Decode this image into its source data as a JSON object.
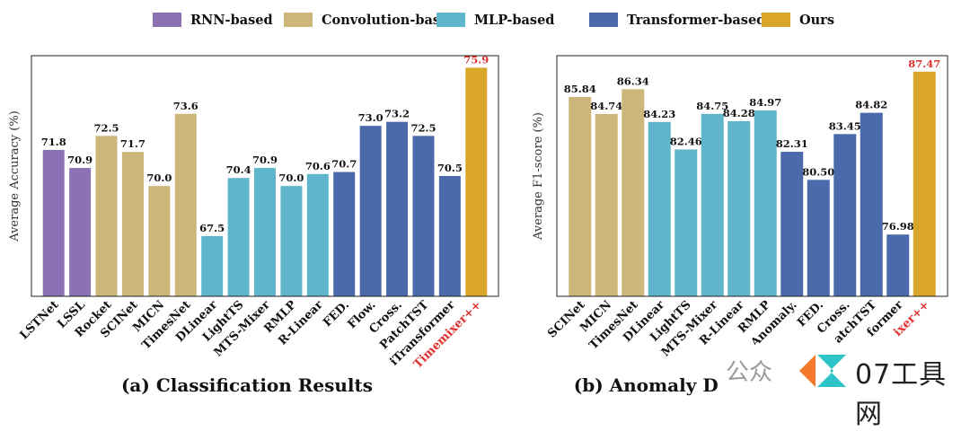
{
  "legend": [
    {
      "label": "RNN-based",
      "color": "#8a72b4"
    },
    {
      "label": "Convolution-based",
      "color": "#cdb67a"
    },
    {
      "label": "MLP-based",
      "color": "#5fb5cc"
    },
    {
      "label": "Transformer-based",
      "color": "#4a6aab"
    },
    {
      "label": "Ours",
      "color": "#d9a62a"
    }
  ],
  "highlight_color": "#e03131",
  "watermark": {
    "text": "07工具网",
    "prefix": "公众"
  },
  "chart_data": [
    {
      "type": "bar",
      "title": "(a) Classification Results",
      "ylabel": "Average Accuracy (%)",
      "xlabel": "",
      "ylim": [
        64.5,
        76.5
      ],
      "categories": [
        "LSTNet",
        "LSSL",
        "Rocket",
        "SCINet",
        "MICN",
        "TimesNet",
        "DLinear",
        "LightTS",
        "MTS-Mixer",
        "RMLP",
        "R-Linear",
        "FED.",
        "Flow.",
        "Cross.",
        "PatchTST",
        "iTransformer",
        "Timemixer++"
      ],
      "values": [
        71.8,
        70.9,
        72.5,
        71.7,
        70.0,
        73.6,
        67.5,
        70.4,
        70.9,
        70.0,
        70.6,
        70.7,
        73.0,
        73.2,
        72.5,
        70.5,
        75.9
      ],
      "labels": [
        "71.8",
        "70.9",
        "72.5",
        "71.7",
        "70.0",
        "73.6",
        "67.5",
        "70.4",
        "70.9",
        "70.0",
        "70.6",
        "70.7",
        "73.0",
        "73.2",
        "72.5",
        "70.5",
        "75.9"
      ],
      "groups": [
        0,
        0,
        1,
        1,
        1,
        1,
        2,
        2,
        2,
        2,
        2,
        3,
        3,
        3,
        3,
        3,
        4
      ]
    },
    {
      "type": "bar",
      "title": "(b) Anomaly Detection",
      "ylabel": "Average F1-score (%)",
      "xlabel": "",
      "ylim": [
        73.0,
        88.5
      ],
      "categories": [
        "SCINet",
        "MICN",
        "TimesNet",
        "DLinear",
        "LightTS",
        "MTS-Mixer",
        "R-Linear",
        "RMLP",
        "Anomaly.",
        "FED.",
        "Cross.",
        "PatchTST",
        "iTransformer",
        "TimeMixer++"
      ],
      "categories_visible": [
        "SCINet",
        "MICN",
        "TimesNet",
        "DLinear",
        "LightTS",
        "MTS-Mixer",
        "R-Linear",
        "RMLP",
        "Anomaly.",
        "FED.",
        "Cross.",
        "atchTST",
        "former",
        "ixer++"
      ],
      "values": [
        85.84,
        84.74,
        86.34,
        84.23,
        82.46,
        84.75,
        84.28,
        84.97,
        82.31,
        80.5,
        83.45,
        84.82,
        76.98,
        87.47
      ],
      "labels": [
        "85.84",
        "84.74",
        "86.34",
        "84.23",
        "82.46",
        "84.75",
        "84.28",
        "84.97",
        "82.31",
        "80.50",
        "83.45",
        "84.82",
        "76.98",
        "87.47"
      ],
      "groups": [
        1,
        1,
        1,
        2,
        2,
        2,
        2,
        2,
        3,
        3,
        3,
        3,
        3,
        4
      ]
    }
  ]
}
